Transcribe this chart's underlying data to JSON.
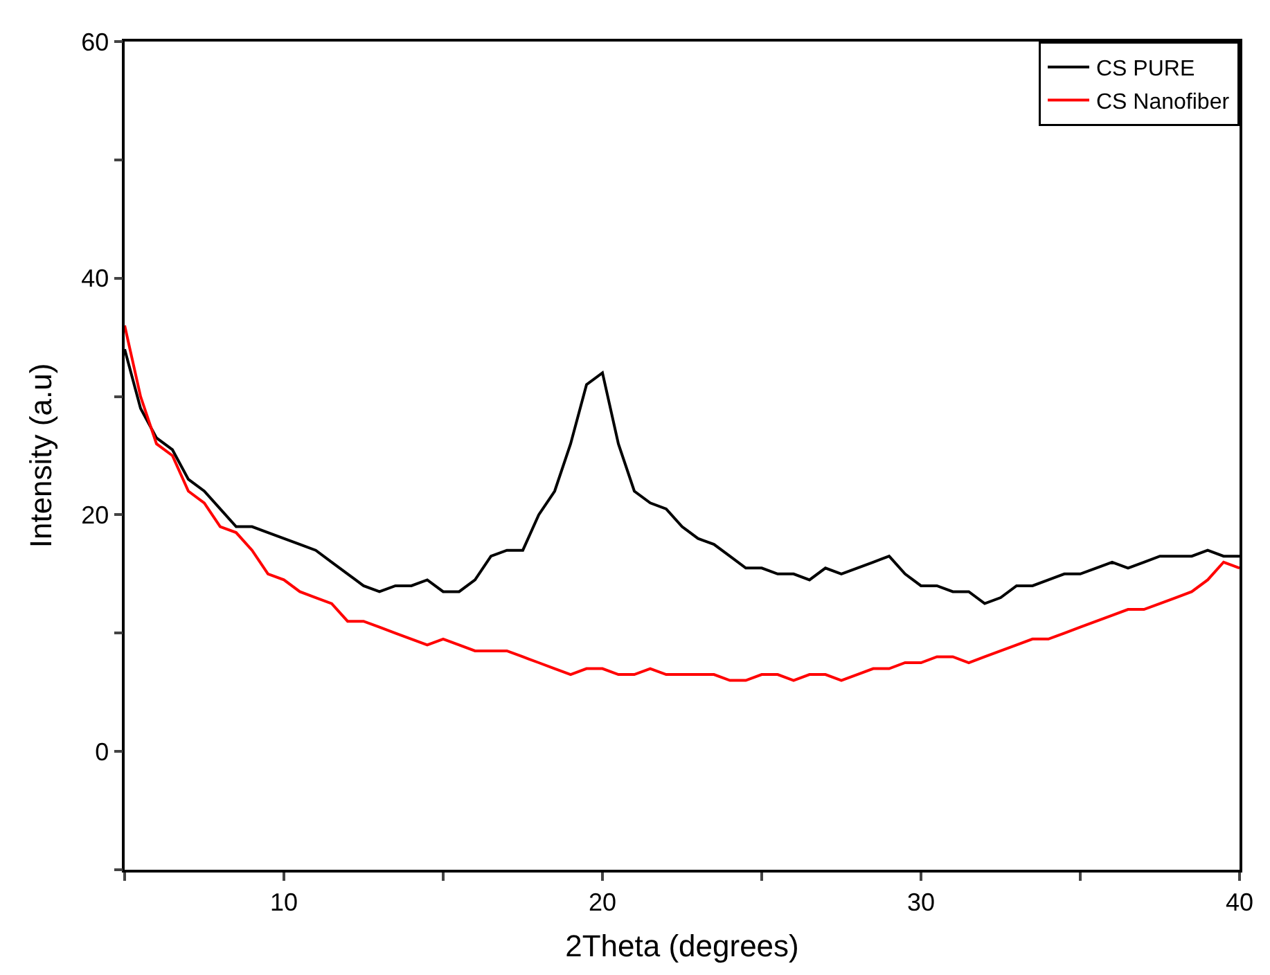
{
  "chart_data": {
    "type": "line",
    "xlabel": "2Theta (degrees)",
    "ylabel": "Intensity (a.u)",
    "x": [
      5,
      5.5,
      6,
      6.5,
      7,
      7.5,
      8,
      8.5,
      9,
      9.5,
      10,
      10.5,
      11,
      11.5,
      12,
      12.5,
      13,
      13.5,
      14,
      14.5,
      15,
      15.5,
      16,
      16.5,
      17,
      17.5,
      18,
      18.5,
      19,
      19.5,
      20,
      20.5,
      21,
      21.5,
      22,
      22.5,
      23,
      23.5,
      24,
      24.5,
      25,
      25.5,
      26,
      26.5,
      27,
      27.5,
      28,
      28.5,
      29,
      29.5,
      30,
      30.5,
      31,
      31.5,
      32,
      32.5,
      33,
      33.5,
      34,
      34.5,
      35,
      35.5,
      36,
      36.5,
      37,
      37.5,
      38,
      38.5,
      39,
      39.5,
      40
    ],
    "series": [
      {
        "name": "CS PURE",
        "color": "#000000",
        "values": [
          34,
          29,
          26.5,
          25.5,
          23,
          22,
          20.5,
          19,
          19,
          18.5,
          18,
          17.5,
          17,
          16,
          15,
          14,
          13.5,
          14,
          14,
          14.5,
          13.5,
          13.5,
          14.5,
          16.5,
          17,
          17,
          20,
          22,
          26,
          31,
          32,
          26,
          22,
          21,
          20.5,
          19,
          18,
          17.5,
          16.5,
          15.5,
          15.5,
          15,
          15,
          14.5,
          15.5,
          15,
          15.5,
          16,
          16.5,
          15,
          14,
          14,
          13.5,
          13.5,
          12.5,
          13,
          14,
          14,
          14.5,
          15,
          15,
          15.5,
          16,
          15.5,
          16,
          16.5,
          16.5,
          16.5,
          17,
          16.5,
          16.5
        ]
      },
      {
        "name": "CS Nanofiber",
        "color": "#ff0000",
        "values": [
          36,
          30,
          26,
          25,
          22,
          21,
          19,
          18.5,
          17,
          15,
          14.5,
          13.5,
          13,
          12.5,
          11,
          11,
          10.5,
          10,
          9.5,
          9,
          9.5,
          9,
          8.5,
          8.5,
          8.5,
          8,
          7.5,
          7,
          6.5,
          7,
          7,
          6.5,
          6.5,
          7,
          6.5,
          6.5,
          6.5,
          6.5,
          6,
          6,
          6.5,
          6.5,
          6,
          6.5,
          6.5,
          6,
          6.5,
          7,
          7,
          7.5,
          7.5,
          8,
          8,
          7.5,
          8,
          8.5,
          9,
          9.5,
          9.5,
          10,
          10.5,
          11,
          11.5,
          12,
          12,
          12.5,
          13,
          13.5,
          14.5,
          16,
          15.5
        ]
      }
    ],
    "xlim": [
      5,
      40
    ],
    "xticks": [
      {
        "value": 5,
        "label": null
      },
      10,
      {
        "value": 15,
        "label": null
      },
      20,
      {
        "value": 25,
        "label": null
      },
      30,
      {
        "value": 35,
        "label": null
      },
      40
    ],
    "ylim": [
      -10,
      60
    ],
    "yticks": [
      {
        "value": -10,
        "label": null
      },
      0,
      {
        "value": 10,
        "label": null
      },
      20,
      {
        "value": 30,
        "label": null
      },
      40,
      {
        "value": 50,
        "label": null
      },
      60
    ],
    "legend": "top right",
    "marker": "none",
    "line_style": "solid"
  }
}
